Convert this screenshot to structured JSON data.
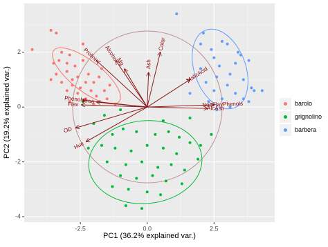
{
  "chart_data": {
    "type": "scatter",
    "xlabel": "PC1 (36.2% explained var.)",
    "ylabel": "PC2 (19.2% explained var.)",
    "xlim": [
      -4.6,
      4.77
    ],
    "ylim": [
      -4.2,
      3.78
    ],
    "xticks": [
      {
        "value": -2.5,
        "label": "-2.5"
      },
      {
        "value": 0,
        "label": "0.0"
      },
      {
        "value": 2.5,
        "label": "2.5"
      }
    ],
    "yticks": [
      2,
      0,
      -2,
      -4
    ],
    "grid": true,
    "legend": "right",
    "series": [
      {
        "name": "barolo",
        "color": "#F8766D",
        "x": [
          -3.6,
          -3.4,
          -4.3,
          -3.2,
          -3.3,
          -2.9,
          -3.5,
          -3.0,
          -2.7,
          -2.4,
          -2.2,
          -3.4,
          -3.0,
          -2.6,
          -2.3,
          -2.8,
          -2.0,
          -1.8,
          -2.5,
          -2.1,
          -1.6,
          -2.6,
          -3.0,
          -1.9,
          -1.5,
          -2.3,
          -2.0,
          -1.2,
          -2.8,
          -3.2,
          -1.4,
          -2.4,
          -1.7,
          -3.6,
          -2.9
        ],
        "y": [
          2.8,
          2.7,
          2.1,
          2.0,
          1.7,
          1.9,
          1.6,
          1.6,
          1.5,
          1.7,
          1.2,
          1.2,
          1.3,
          1.1,
          0.9,
          0.8,
          0.9,
          1.1,
          0.7,
          0.6,
          0.6,
          0.5,
          0.6,
          0.4,
          0.3,
          0.3,
          0.1,
          0.1,
          1.0,
          0.9,
          0.8,
          2.3,
          1.4,
          1.0,
          0.2
        ]
      },
      {
        "name": "grignolino",
        "color": "#00BA38",
        "x": [
          -2.0,
          -1.3,
          -0.9,
          -0.4,
          0.3,
          0.8,
          1.2,
          1.6,
          2.0,
          -1.7,
          -1.2,
          -0.6,
          0.0,
          0.6,
          1.1,
          1.9,
          -1.5,
          -0.8,
          -0.2,
          0.4,
          0.9,
          1.4,
          -1.0,
          -0.4,
          0.2,
          0.7,
          1.3,
          -0.7,
          0.0,
          0.5,
          -1.3,
          -0.2,
          -0.8,
          -2.2,
          -2.4,
          -1.0,
          0.6,
          1.6,
          2.4,
          -1.6
        ],
        "y": [
          -0.6,
          -1.0,
          -0.8,
          -0.9,
          -1.0,
          -0.9,
          -1.1,
          -1.3,
          -1.4,
          -1.4,
          -1.5,
          -1.6,
          -1.4,
          -1.5,
          -1.7,
          -1.9,
          -2.0,
          -2.1,
          -2.0,
          -2.2,
          -2.1,
          -2.3,
          -2.5,
          -2.6,
          -2.5,
          -2.7,
          -2.8,
          -3.0,
          -3.1,
          -3.2,
          -2.9,
          -3.7,
          -3.6,
          -1.5,
          0.2,
          -0.1,
          -0.5,
          -0.4,
          -1.0,
          -0.3
        ]
      },
      {
        "name": "barbera",
        "color": "#619CFF",
        "x": [
          1.1,
          2.1,
          2.8,
          2.4,
          3.0,
          3.5,
          2.5,
          3.3,
          2.7,
          3.8,
          2.0,
          3.1,
          2.6,
          3.6,
          2.2,
          3.0,
          3.9,
          2.5,
          3.3,
          4.0,
          4.3,
          2.8,
          3.6,
          2.3,
          3.1,
          2.6,
          1.6,
          3.4,
          2.0,
          3.8
        ],
        "y": [
          3.4,
          2.7,
          2.4,
          2.1,
          2.3,
          1.9,
          1.8,
          1.6,
          1.5,
          1.7,
          1.4,
          1.2,
          1.1,
          1.0,
          0.9,
          0.8,
          0.7,
          0.6,
          0.5,
          0.6,
          0.6,
          0.3,
          0.3,
          0.2,
          0.0,
          -0.1,
          0.5,
          2.0,
          2.3,
          0.2
        ]
      }
    ],
    "loadings": [
      {
        "label": "Alcohol",
        "x": -1.17,
        "y": 1.69
      },
      {
        "label": "Color",
        "x": 0.49,
        "y": 2.0
      },
      {
        "label": "Ash",
        "x": 0.05,
        "y": 1.26
      },
      {
        "label": "Mg",
        "x": -0.85,
        "y": 1.39
      },
      {
        "label": "Proline",
        "x": -1.89,
        "y": 1.69
      },
      {
        "label": "Phenols",
        "x": -2.41,
        "y": 0.25
      },
      {
        "label": "Flav",
        "x": -2.46,
        "y": 0.08
      },
      {
        "label": "Proa",
        "x": -1.89,
        "y": 0.18
      },
      {
        "label": "Hue",
        "x": -2.28,
        "y": -1.26
      },
      {
        "label": "OD",
        "x": -2.67,
        "y": -0.76
      },
      {
        "label": "MalicAcid",
        "x": 1.61,
        "y": 1.01
      },
      {
        "label": "AlcAsh",
        "x": 2.25,
        "y": -0.05
      },
      {
        "label": "NonFlavPhenols",
        "x": 2.51,
        "y": 0.08
      }
    ]
  }
}
